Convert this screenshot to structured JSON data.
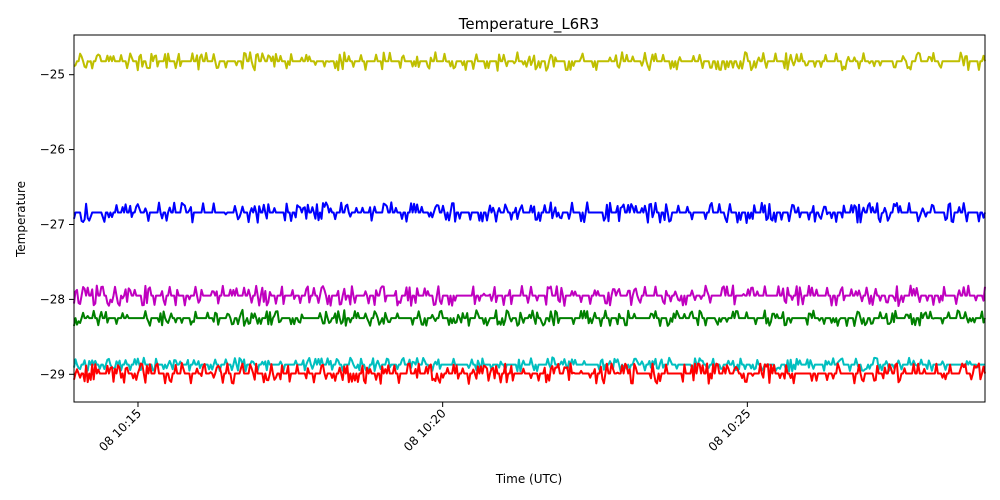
{
  "chart_data": {
    "type": "line",
    "title": "Temperature_L6R3",
    "xlabel": "Time (UTC)",
    "ylabel": "Temperature",
    "x_start_minute": 13.95,
    "x_end_minute": 28.9,
    "xlim_minutes": [
      13.95,
      28.9
    ],
    "ylim": [
      -29.37,
      -24.47
    ],
    "y_ticks": [
      -25,
      -26,
      -27,
      -28,
      -29
    ],
    "y_tick_labels": [
      "−25",
      "−26",
      "−27",
      "−28",
      "−29"
    ],
    "x_ticks_minutes": [
      15,
      20,
      25
    ],
    "x_tick_labels": [
      "08 10:15",
      "08 10:20",
      "08 10:25"
    ],
    "grid": false,
    "series": [
      {
        "name": "yellow",
        "color": "#bfbf00",
        "level": -24.82,
        "noise": 0.08,
        "seed": 11
      },
      {
        "name": "blue",
        "color": "#0000ff",
        "level": -26.84,
        "noise": 0.09,
        "seed": 23
      },
      {
        "name": "magenta",
        "color": "#bf00bf",
        "level": -27.95,
        "noise": 0.09,
        "seed": 37
      },
      {
        "name": "green",
        "color": "#008000",
        "level": -28.25,
        "noise": 0.07,
        "seed": 41
      },
      {
        "name": "cyan",
        "color": "#00bfbf",
        "level": -28.87,
        "noise": 0.06,
        "seed": 53
      },
      {
        "name": "red",
        "color": "#ff0000",
        "level": -28.99,
        "noise": 0.09,
        "seed": 67
      }
    ]
  }
}
